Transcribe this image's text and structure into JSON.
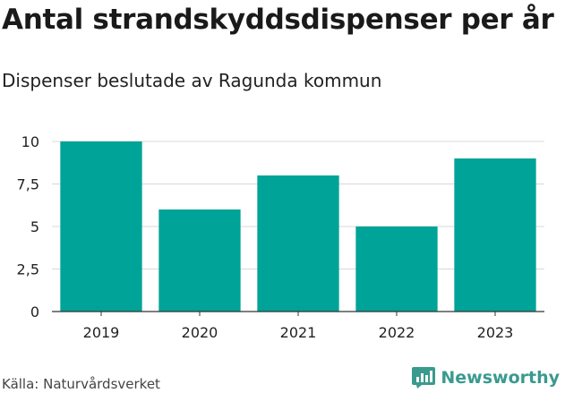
{
  "header": {
    "title": "Antal strandskyddsdispenser per år",
    "subtitle": "Dispenser beslutade av Ragunda kommun"
  },
  "footer": {
    "source": "Källa: Naturvårdsverket",
    "brand": "Newsworthy",
    "brand_icon": "bar-chart-logo-icon"
  },
  "colors": {
    "bar": "#00a398",
    "grid": "#d9d9d9",
    "axis": "#333333",
    "brand": "#3a9a8e"
  },
  "chart_data": {
    "type": "bar",
    "categories": [
      "2019",
      "2020",
      "2021",
      "2022",
      "2023"
    ],
    "values": [
      10,
      6,
      8,
      5,
      9
    ],
    "yticks": [
      0,
      2.5,
      5,
      7.5,
      10
    ],
    "ytick_labels": [
      "0",
      "2,5",
      "5",
      "7,5",
      "10"
    ],
    "ylim": [
      0,
      10
    ],
    "grid": true,
    "legend": "none"
  }
}
